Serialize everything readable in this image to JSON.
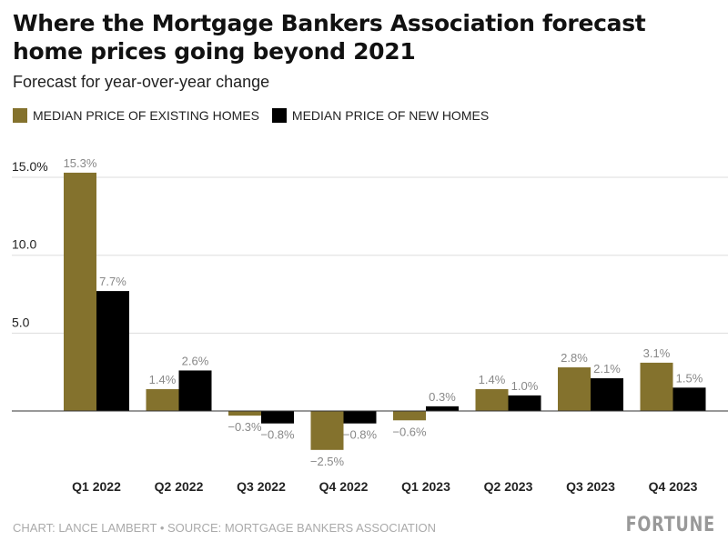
{
  "chart_data": {
    "type": "bar",
    "title": "Where the Mortgage Bankers Association forecast home prices going beyond 2021",
    "subtitle": "Forecast for year-over-year change",
    "categories": [
      "Q1 2022",
      "Q2 2022",
      "Q3 2022",
      "Q4 2022",
      "Q1 2023",
      "Q2 2023",
      "Q3 2023",
      "Q4 2023"
    ],
    "series": [
      {
        "name": "MEDIAN PRICE OF EXISTING HOMES",
        "color": "#84722d",
        "values": [
          15.3,
          1.4,
          -0.3,
          -2.5,
          -0.6,
          1.4,
          2.8,
          3.1
        ],
        "labels": [
          "15.3%",
          "1.4%",
          "−0.3%",
          "−2.5%",
          "−0.6%",
          "1.4%",
          "2.8%",
          "3.1%"
        ]
      },
      {
        "name": "MEDIAN PRICE OF NEW HOMES",
        "color": "#000000",
        "values": [
          7.7,
          2.6,
          -0.8,
          -0.8,
          0.3,
          1.0,
          2.1,
          1.5
        ],
        "labels": [
          "7.7%",
          "2.6%",
          "−0.8%",
          "−0.8%",
          "0.3%",
          "1.0%",
          "2.1%",
          "1.5%"
        ]
      }
    ],
    "yticks": [
      {
        "value": 5,
        "label": "5.0"
      },
      {
        "value": 10,
        "label": "10.0"
      },
      {
        "value": 15,
        "label": "15.0%"
      }
    ],
    "ylim": [
      -3,
      16
    ],
    "grid": true,
    "legend": "top-left"
  },
  "footer": "CHART: LANCE LAMBERT • SOURCE: MORTGAGE BANKERS ASSOCIATION",
  "logo": "FORTUNE"
}
